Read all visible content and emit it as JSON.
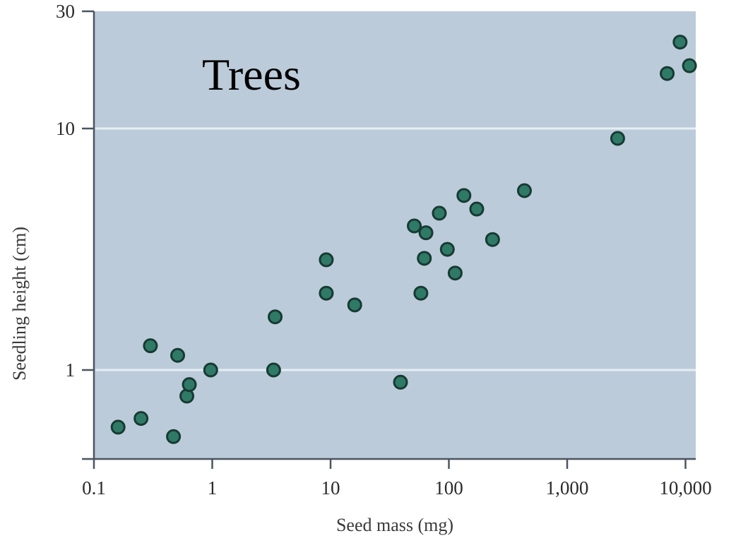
{
  "chart_data": {
    "type": "scatter",
    "title": "Trees",
    "xlabel": "Seed mass (mg)",
    "ylabel": "Seedling height (cm)",
    "xscale": "log",
    "yscale": "log",
    "xlim": [
      0.1,
      12000
    ],
    "ylim": [
      0.43,
      30
    ],
    "xticks": [
      0.1,
      1,
      10,
      100,
      1000,
      10000
    ],
    "xtick_labels": [
      "0.1",
      "1",
      "10",
      "100",
      "1,000",
      "10,000"
    ],
    "yticks": [
      1,
      10,
      30
    ],
    "ytick_labels": [
      "1",
      "10",
      "30"
    ],
    "grid": "horizontal at y=1 and y=10",
    "legend": null,
    "colors": {
      "plot_bg": "#bccbd9",
      "point_fill": "#2f7a66",
      "point_edge": "#173a33",
      "gridline": "#e6eef4",
      "axis": "#4a5560"
    },
    "series": [
      {
        "name": "Trees",
        "points": [
          {
            "x": 0.16,
            "y": 0.58
          },
          {
            "x": 0.25,
            "y": 0.63
          },
          {
            "x": 0.3,
            "y": 1.26
          },
          {
            "x": 0.47,
            "y": 0.53
          },
          {
            "x": 0.51,
            "y": 1.15
          },
          {
            "x": 0.61,
            "y": 0.78
          },
          {
            "x": 0.64,
            "y": 0.87
          },
          {
            "x": 0.97,
            "y": 1.0
          },
          {
            "x": 3.3,
            "y": 1.0
          },
          {
            "x": 3.4,
            "y": 1.66
          },
          {
            "x": 9.2,
            "y": 2.86
          },
          {
            "x": 9.2,
            "y": 2.08
          },
          {
            "x": 16,
            "y": 1.86
          },
          {
            "x": 39,
            "y": 0.89
          },
          {
            "x": 51,
            "y": 3.95
          },
          {
            "x": 58,
            "y": 2.08
          },
          {
            "x": 62,
            "y": 2.9
          },
          {
            "x": 64,
            "y": 3.7
          },
          {
            "x": 83,
            "y": 4.46
          },
          {
            "x": 97,
            "y": 3.16
          },
          {
            "x": 113,
            "y": 2.52
          },
          {
            "x": 134,
            "y": 5.28
          },
          {
            "x": 172,
            "y": 4.64
          },
          {
            "x": 234,
            "y": 3.47
          },
          {
            "x": 435,
            "y": 5.53
          },
          {
            "x": 2670,
            "y": 9.1
          },
          {
            "x": 7000,
            "y": 16.9
          },
          {
            "x": 9000,
            "y": 22.8
          },
          {
            "x": 10800,
            "y": 18.2
          }
        ]
      }
    ]
  }
}
